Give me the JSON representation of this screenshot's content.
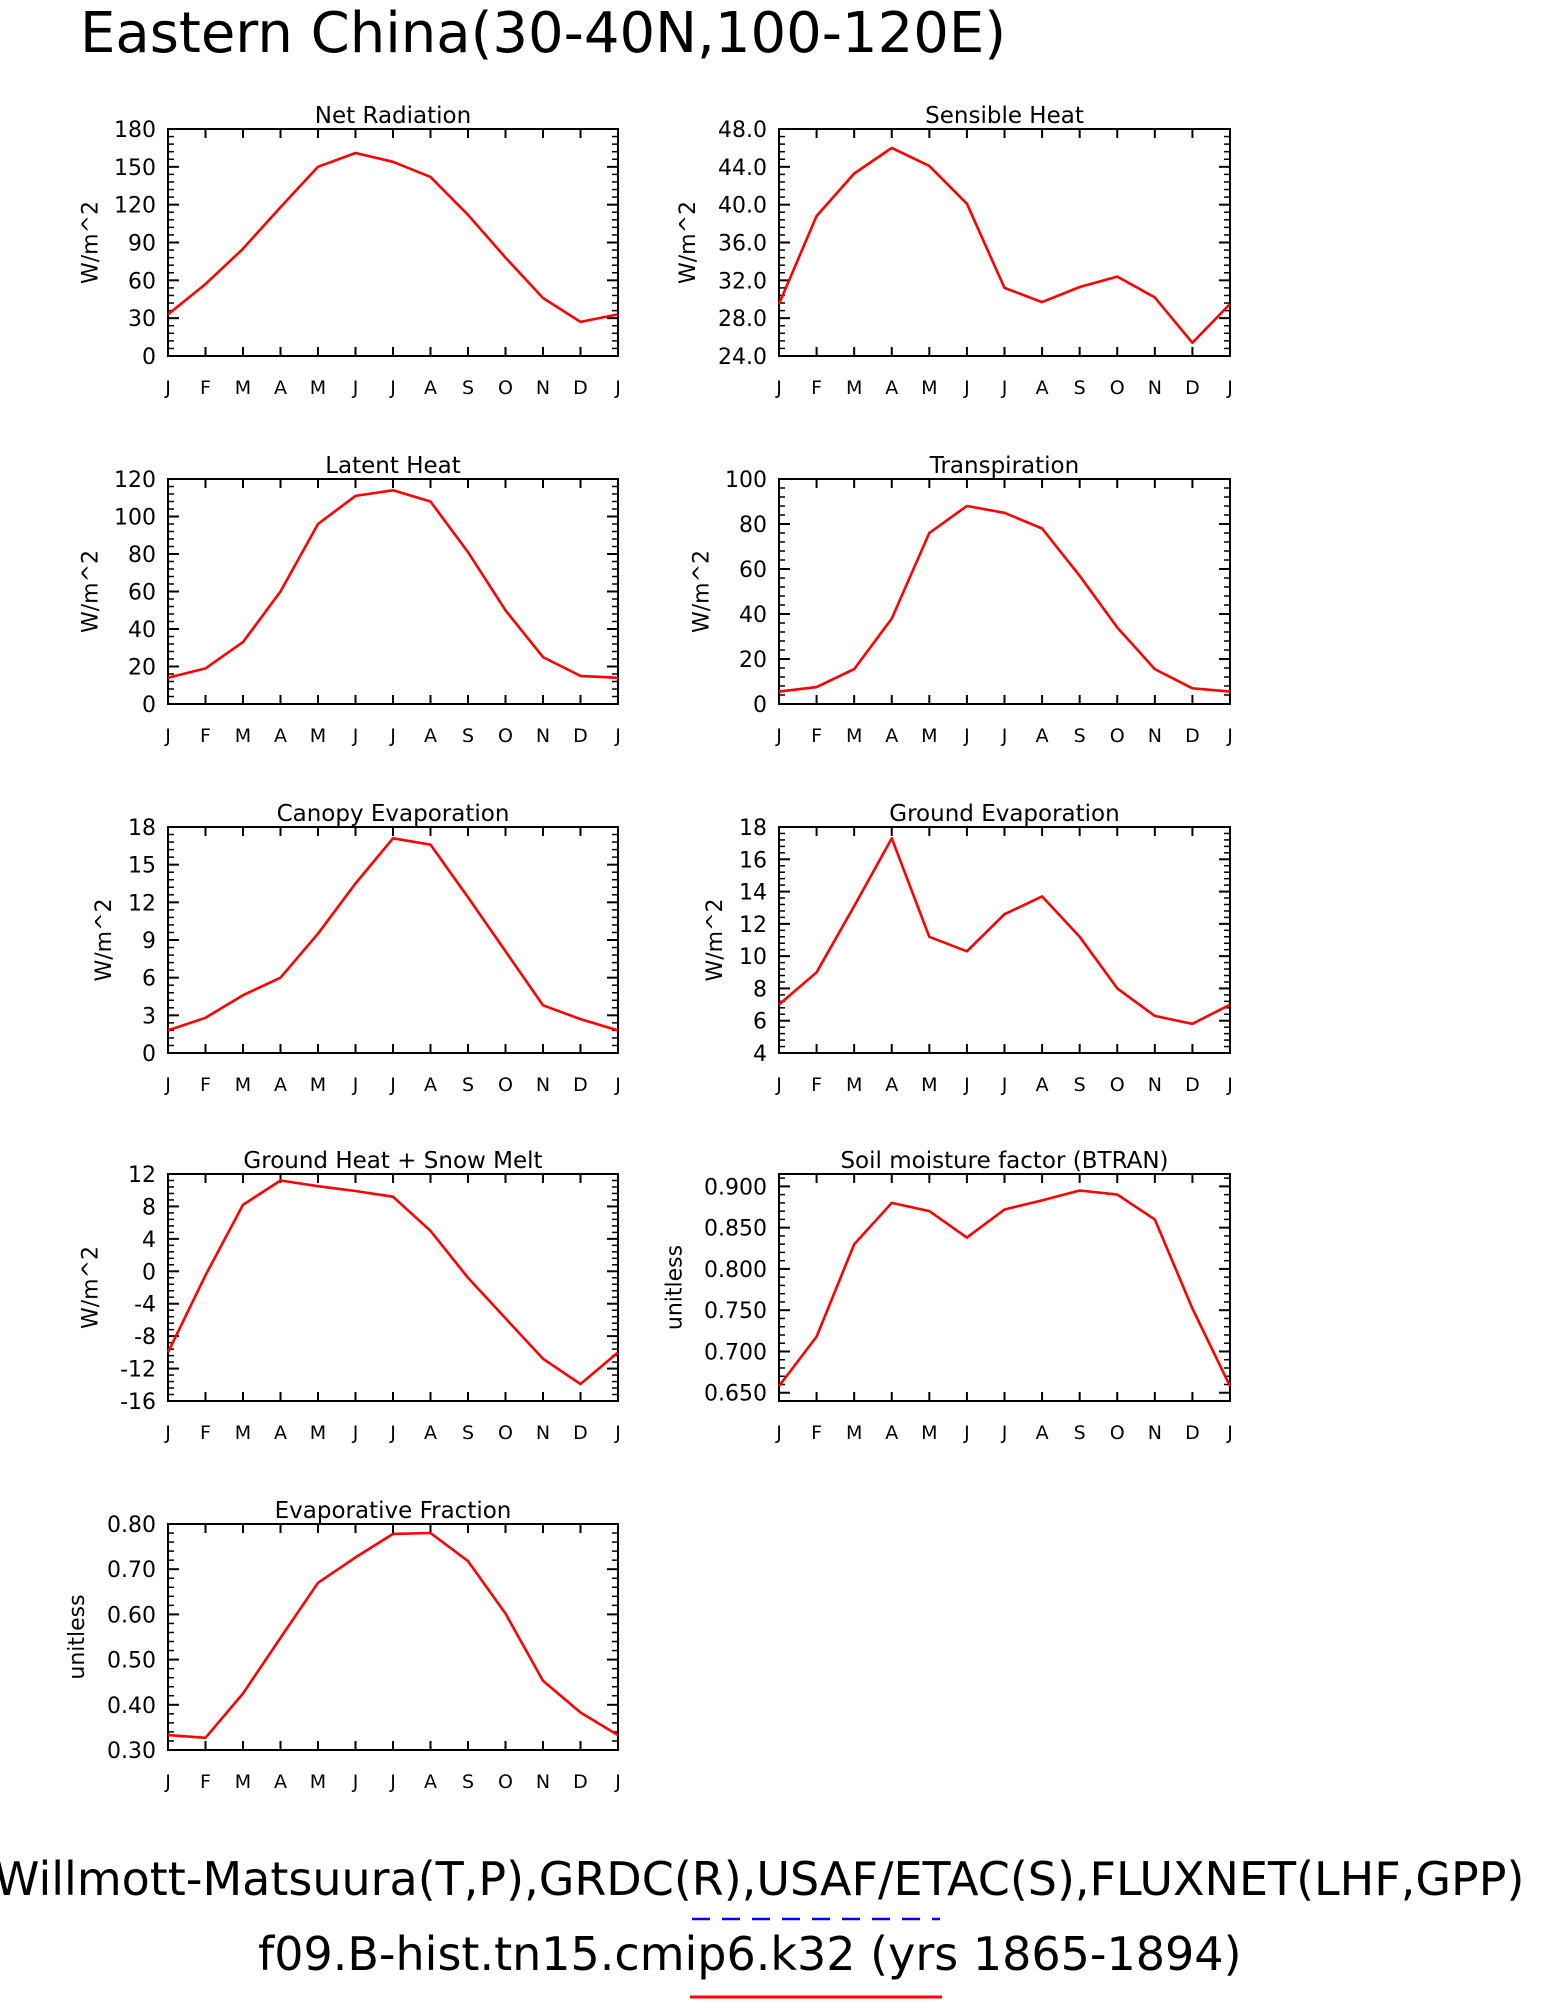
{
  "page": {
    "title": "Eastern China(30-40N,100-120E)",
    "footer_line1": "Willmott-Matsuura(T,P),GRDC(R),USAF/ETAC(S),FLUXNET(LHF,GPP)",
    "footer_line2": "f09.B-hist.tn15.cmip6.k32 (yrs 1865-1894)",
    "obs_line_color": "#0000ff",
    "model_line_color": "#ff0000"
  },
  "months": [
    "J",
    "F",
    "M",
    "A",
    "M",
    "J",
    "J",
    "A",
    "S",
    "O",
    "N",
    "D",
    "J"
  ],
  "chart_data": [
    {
      "type": "line",
      "title": "Net Radiation",
      "ylabel": "W/m^2",
      "ylim": [
        0,
        180
      ],
      "yticks": [
        "0",
        "30",
        "60",
        "90",
        "120",
        "150",
        "180"
      ],
      "series": [
        {
          "values": [
            33,
            57,
            85,
            118,
            150,
            161,
            154,
            142,
            112,
            78,
            46,
            27,
            33
          ]
        }
      ]
    },
    {
      "type": "line",
      "title": "Sensible Heat",
      "ylabel": "W/m^2",
      "ylim": [
        24,
        48
      ],
      "yticks": [
        "24.0",
        "28.0",
        "32.0",
        "36.0",
        "40.0",
        "44.0",
        "48.0"
      ],
      "series": [
        {
          "values": [
            29.5,
            38.8,
            43.3,
            46.0,
            44.1,
            40.1,
            31.2,
            29.7,
            31.3,
            32.4,
            30.2,
            25.4,
            29.5
          ]
        }
      ]
    },
    {
      "type": "line",
      "title": "Latent Heat",
      "ylabel": "W/m^2",
      "ylim": [
        0,
        120
      ],
      "yticks": [
        "0",
        "20",
        "40",
        "60",
        "80",
        "100",
        "120"
      ],
      "series": [
        {
          "values": [
            14,
            19,
            33,
            60,
            96,
            111,
            114,
            108,
            81,
            50,
            25,
            15,
            14
          ]
        }
      ]
    },
    {
      "type": "line",
      "title": "Transpiration",
      "ylabel": "W/m^2",
      "ylim": [
        0,
        100
      ],
      "yticks": [
        "0",
        "20",
        "40",
        "60",
        "80",
        "100"
      ],
      "series": [
        {
          "values": [
            5.5,
            7.5,
            15.5,
            38,
            76,
            88,
            85,
            78,
            57,
            34,
            15.5,
            7,
            5.5
          ]
        }
      ]
    },
    {
      "type": "line",
      "title": "Canopy Evaporation",
      "ylabel": "W/m^2",
      "ylim": [
        0,
        18
      ],
      "yticks": [
        "0",
        "3",
        "6",
        "9",
        "12",
        "15",
        "18"
      ],
      "series": [
        {
          "values": [
            1.8,
            2.8,
            4.6,
            6.0,
            9.5,
            13.5,
            17.1,
            16.6,
            12.4,
            8.1,
            3.8,
            2.7,
            1.8
          ]
        }
      ]
    },
    {
      "type": "line",
      "title": "Ground Evaporation",
      "ylabel": "W/m^2",
      "ylim": [
        4,
        18
      ],
      "yticks": [
        "4",
        "6",
        "8",
        "10",
        "12",
        "14",
        "16",
        "18"
      ],
      "series": [
        {
          "values": [
            7.0,
            9.0,
            13.1,
            17.3,
            11.2,
            10.3,
            12.6,
            13.7,
            11.2,
            8.0,
            6.3,
            5.8,
            7.0
          ]
        }
      ]
    },
    {
      "type": "line",
      "title": "Ground Heat + Snow Melt",
      "ylabel": "W/m^2",
      "ylim": [
        -16,
        12
      ],
      "yticks": [
        "-16",
        "-12",
        "-8",
        "-4",
        "0",
        "4",
        "8",
        "12"
      ],
      "series": [
        {
          "values": [
            -10.0,
            -0.5,
            8.2,
            11.2,
            10.5,
            9.9,
            9.2,
            5.0,
            -0.8,
            -5.8,
            -10.8,
            -13.9,
            -10.0
          ]
        }
      ]
    },
    {
      "type": "line",
      "title": "Soil moisture factor (BTRAN)",
      "ylabel": "unitless",
      "ylim": [
        0.64,
        0.915
      ],
      "yticks": [
        "0.650",
        "0.700",
        "0.750",
        "0.800",
        "0.850",
        "0.900"
      ],
      "series": [
        {
          "values": [
            0.658,
            0.718,
            0.83,
            0.88,
            0.87,
            0.838,
            0.872,
            0.883,
            0.895,
            0.89,
            0.86,
            0.752,
            0.658
          ]
        }
      ]
    },
    {
      "type": "line",
      "title": "Evaporative Fraction",
      "ylabel": "unitless",
      "ylim": [
        0.3,
        0.8
      ],
      "yticks": [
        "0.30",
        "0.40",
        "0.50",
        "0.60",
        "0.70",
        "0.80"
      ],
      "series": [
        {
          "values": [
            0.333,
            0.327,
            0.425,
            0.548,
            0.67,
            0.726,
            0.778,
            0.78,
            0.718,
            0.602,
            0.453,
            0.383,
            0.333
          ]
        }
      ]
    }
  ]
}
